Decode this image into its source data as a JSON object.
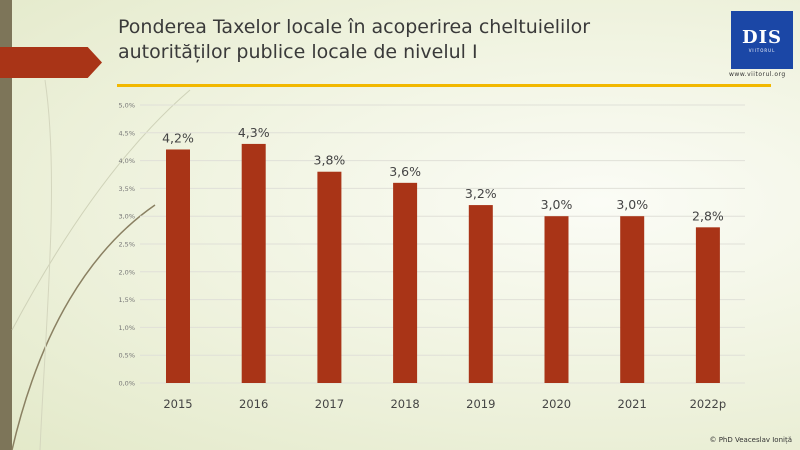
{
  "header": {
    "title_line1": "Ponderea Taxelor locale în acoperirea cheltuielilor",
    "title_line2": "autorităților publice locale de nivelul I"
  },
  "logo": {
    "text": "DIS",
    "subtext": "VIITORUL",
    "url": "www.viitorul.org"
  },
  "footer": "© PhD Veaceslav Ioniță",
  "colors": {
    "bar": "#a93417",
    "accent": "#f2b800",
    "brand": "#1b47a6"
  },
  "chart_data": {
    "type": "bar",
    "title": "",
    "categories": [
      "2015",
      "2016",
      "2017",
      "2018",
      "2019",
      "2020",
      "2021",
      "2022p"
    ],
    "values": [
      4.2,
      4.3,
      3.8,
      3.6,
      3.2,
      3.0,
      3.0,
      2.8
    ],
    "data_labels": [
      "4,2%",
      "4,3%",
      "3,8%",
      "3,6%",
      "3,2%",
      "3,0%",
      "3,0%",
      "2,8%"
    ],
    "yticks": [
      "0,0%",
      "0,5%",
      "1,0%",
      "1,5%",
      "2,0%",
      "2,5%",
      "3,0%",
      "3,5%",
      "4,0%",
      "4,5%",
      "5,0%"
    ],
    "ylim": [
      0,
      5
    ],
    "grid": true,
    "xlabel": "",
    "ylabel": ""
  }
}
